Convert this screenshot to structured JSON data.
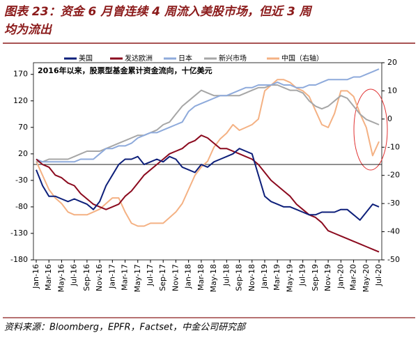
{
  "chart_data": {
    "type": "line",
    "title": [
      "图表 23：资金 6 月曾连续 4 周流入美股市场，但近 3 周",
      "均为流出"
    ],
    "annotation": "2016年以来，股票型基金累计资金流向，十亿美元",
    "source": "资料来源：Bloomberg，EPFR，Factset，中金公司研究部",
    "categories": [
      "Jan-16",
      null,
      "Mar-16",
      null,
      "May-16",
      null,
      "Jul-16",
      null,
      "Sep-16",
      null,
      "Nov-16",
      null,
      "Jan-17",
      null,
      "Mar-17",
      null,
      "May-17",
      null,
      "Jul-17",
      null,
      "Sep-17",
      null,
      "Nov-17",
      null,
      "Jan-18",
      null,
      "Mar-18",
      null,
      "May-18",
      null,
      "Jul-18",
      null,
      "Sep-18",
      null,
      "Nov-18",
      null,
      "Jan-19",
      null,
      "Mar-19",
      null,
      "May-19",
      null,
      "Jul-19",
      null,
      "Sep-19",
      null,
      "Nov-19",
      null,
      "Jan-20",
      null,
      "Mar-20",
      null,
      "May-20",
      null,
      "Jul-20"
    ],
    "ylim": [
      -180,
      192
    ],
    "yticks": [
      170,
      120,
      70,
      20,
      -30,
      -80,
      -130,
      -180
    ],
    "y2lim": [
      -50,
      20
    ],
    "y2ticks": [
      20,
      10,
      0,
      -10,
      -20,
      -30,
      -40,
      -50
    ],
    "series": [
      {
        "name": "美国",
        "color": "#0d1f7a",
        "values": [
          -10,
          -40,
          -60,
          -60,
          -65,
          -70,
          -65,
          -70,
          -75,
          -85,
          -70,
          -40,
          -20,
          0,
          10,
          10,
          15,
          0,
          5,
          10,
          5,
          15,
          10,
          -5,
          -10,
          -15,
          0,
          -5,
          5,
          10,
          15,
          20,
          30,
          25,
          20,
          -20,
          -60,
          -70,
          -75,
          -80,
          -80,
          -85,
          -90,
          -95,
          -95,
          -90,
          -90,
          -90,
          -85,
          -85,
          -95,
          -105,
          -90,
          -75,
          -80
        ]
      },
      {
        "name": "发达欧洲",
        "color": "#8b0a1e",
        "values": [
          10,
          0,
          -5,
          -20,
          -25,
          -35,
          -40,
          -55,
          -65,
          -75,
          -80,
          -85,
          -80,
          -75,
          -60,
          -50,
          -35,
          -20,
          -10,
          0,
          10,
          20,
          25,
          30,
          40,
          45,
          55,
          50,
          40,
          30,
          30,
          25,
          20,
          15,
          10,
          0,
          -15,
          -30,
          -40,
          -50,
          -60,
          -75,
          -85,
          -95,
          -100,
          -110,
          -125,
          -130,
          -135,
          -140,
          -145,
          -150,
          -155,
          -160,
          -165
        ]
      },
      {
        "name": "日本",
        "color": "#8eaadb",
        "values": [
          10,
          5,
          5,
          5,
          5,
          5,
          5,
          10,
          10,
          10,
          20,
          30,
          30,
          35,
          35,
          40,
          50,
          55,
          60,
          60,
          65,
          70,
          75,
          80,
          100,
          110,
          115,
          120,
          125,
          130,
          130,
          135,
          140,
          145,
          145,
          150,
          150,
          150,
          155,
          150,
          150,
          145,
          145,
          150,
          150,
          155,
          160,
          160,
          160,
          160,
          165,
          165,
          170,
          175,
          180
        ]
      },
      {
        "name": "新兴市场",
        "color": "#a6a6a6",
        "values": [
          5,
          5,
          10,
          10,
          10,
          10,
          15,
          20,
          25,
          25,
          25,
          30,
          35,
          40,
          45,
          50,
          55,
          55,
          60,
          65,
          75,
          80,
          95,
          110,
          120,
          130,
          140,
          135,
          130,
          130,
          130,
          130,
          130,
          135,
          140,
          145,
          145,
          150,
          150,
          145,
          140,
          140,
          135,
          120,
          110,
          105,
          110,
          120,
          130,
          125,
          110,
          95,
          85,
          80,
          75
        ]
      },
      {
        "name": "中国（右轴）",
        "color": "#f4b183",
        "axis": "y2",
        "values": [
          -15,
          -20,
          -25,
          -28,
          -30,
          -33,
          -34,
          -34,
          -34,
          -33,
          -32,
          -30,
          -28,
          -28,
          -33,
          -37,
          -38,
          -38,
          -37,
          -37,
          -37,
          -35,
          -33,
          -30,
          -25,
          -20,
          -17,
          -15,
          -10,
          -7,
          -5,
          -2,
          -4,
          -3,
          -2,
          0,
          10,
          12,
          14,
          14,
          13,
          11,
          10,
          8,
          3,
          -2,
          -3,
          2,
          10,
          10,
          8,
          2,
          -3,
          -13,
          -8
        ]
      }
    ]
  }
}
